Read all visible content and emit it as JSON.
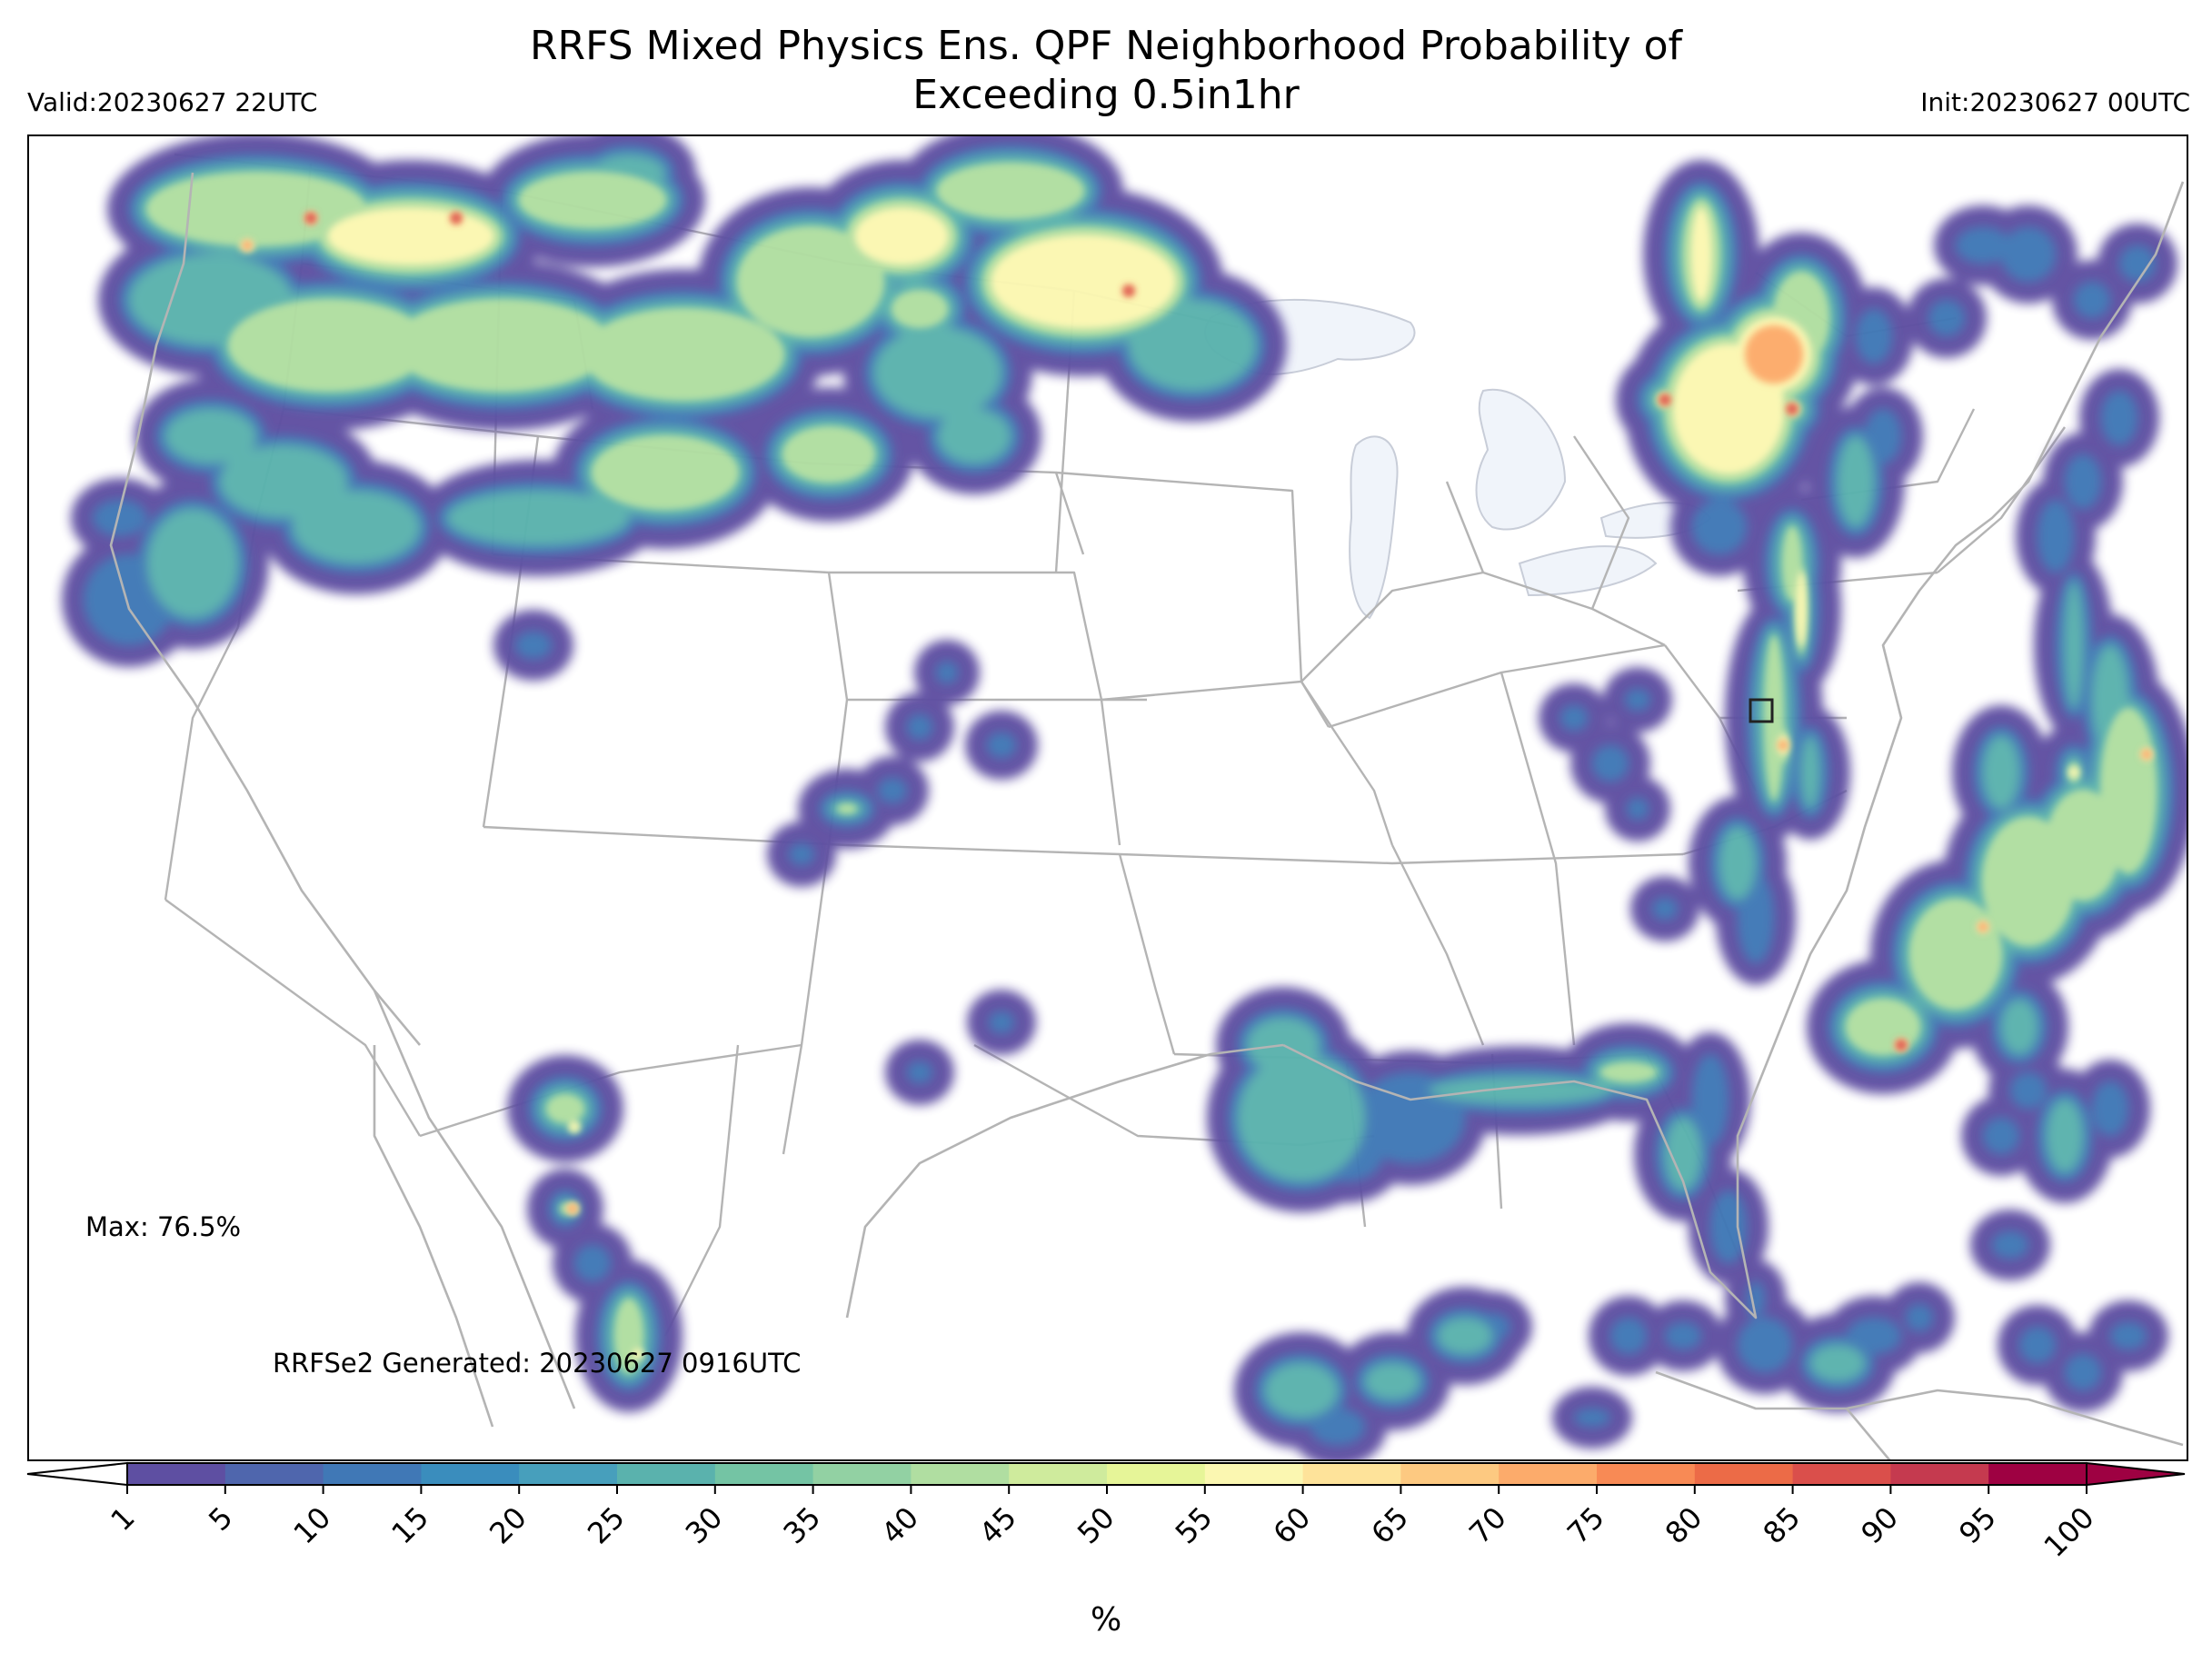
{
  "title": {
    "line1": "RRFS Mixed Physics Ens. QPF Neighborhood Probability of",
    "line2": "Exceeding 0.5in1hr"
  },
  "valid": "Valid:20230627 22UTC",
  "init": "Init:20230627 00UTC",
  "max_label": "Max: 76.5%",
  "generated_label": "RRFSe2 Generated: 20230627 0916UTC",
  "colorbar": {
    "unit": "%",
    "levels": [
      1,
      5,
      10,
      15,
      20,
      25,
      30,
      35,
      40,
      45,
      50,
      55,
      60,
      65,
      70,
      75,
      80,
      85,
      90,
      95,
      100
    ],
    "tick_labels": [
      "1",
      "5",
      "10",
      "15",
      "20",
      "25",
      "30",
      "35",
      "40",
      "45",
      "50",
      "55",
      "60",
      "65",
      "70",
      "75",
      "80",
      "85",
      "90",
      "95",
      "100"
    ],
    "colors": [
      "#5e4fa2",
      "#4f66ad",
      "#4078b6",
      "#3a8dbd",
      "#479fbc",
      "#5ab2ad",
      "#74c4a4",
      "#92d1a3",
      "#b0dea1",
      "#cfeb9d",
      "#e6f598",
      "#fbf7b1",
      "#fee39a",
      "#fdc981",
      "#fcab6b",
      "#f88a55",
      "#ec6b47",
      "#da4f4b",
      "#c53a4f",
      "#9e0142"
    ],
    "under_color": "#ffffff",
    "over_color": "#9e0142"
  },
  "map": {
    "projection": "Lambert Conformal (CONUS)",
    "region": "Contiguous United States",
    "lakes_color": "#f0f4fa",
    "boundary_color": "#b4b4b4"
  }
}
